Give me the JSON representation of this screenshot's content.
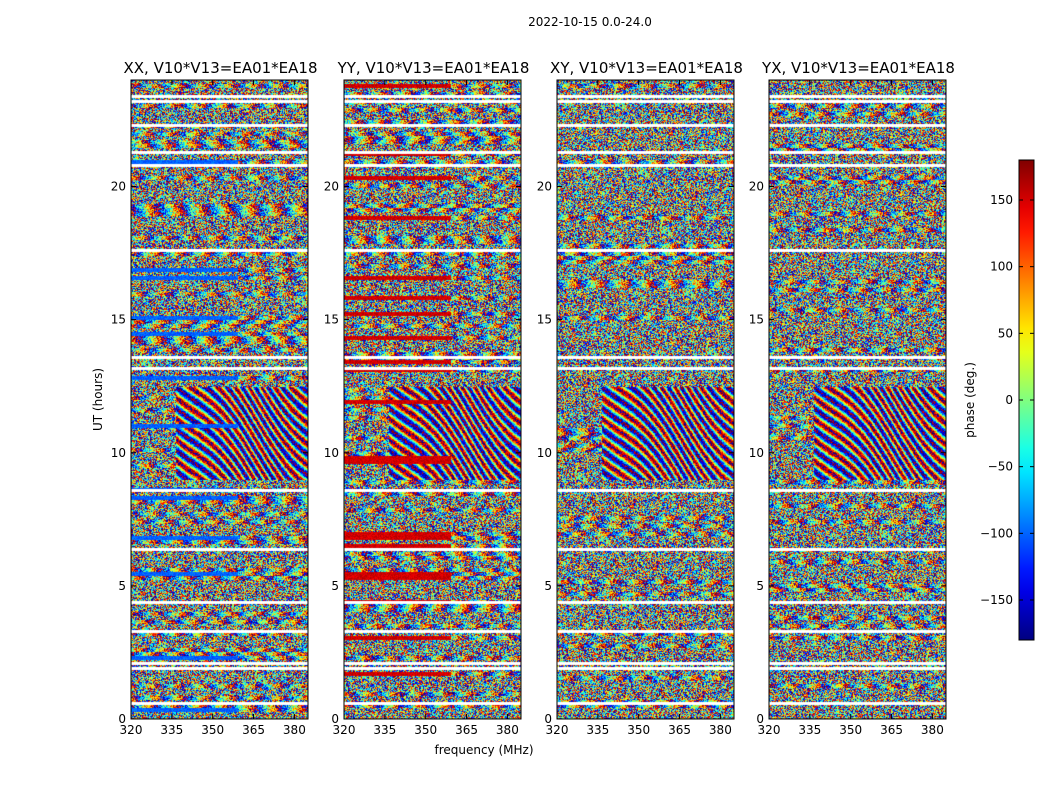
{
  "figure_title": "2022-10-15 0.0-24.0",
  "chart_data": [
    {
      "type": "heatmap",
      "title": "XX, V10*V13=EA01*EA18",
      "xlabel": "",
      "ylabel": "UT (hours)",
      "xlim": [
        320,
        385
      ],
      "ylim": [
        0,
        24
      ],
      "xticks": [
        320,
        335,
        350,
        365,
        380
      ],
      "yticks": [
        0,
        5,
        10,
        15,
        20
      ],
      "blank_hours": [
        0.6,
        1.9,
        2.1,
        3.3,
        4.4,
        6.4,
        8.6,
        13.2,
        13.6,
        17.6,
        20.8,
        21.3,
        22.3,
        23.2,
        23.4
      ]
    },
    {
      "type": "heatmap",
      "title": "YY, V10*V13=EA01*EA18",
      "xlabel": "frequency (MHz)",
      "ylabel": "",
      "xlim": [
        320,
        385
      ],
      "ylim": [
        0,
        24
      ],
      "xticks": [
        320,
        335,
        350,
        365,
        380
      ],
      "yticks": [
        0,
        5,
        10,
        15,
        20
      ],
      "blank_hours": [
        0.6,
        1.9,
        2.1,
        3.3,
        4.4,
        6.4,
        8.6,
        13.2,
        13.6,
        17.6,
        20.8,
        21.3,
        22.3,
        23.2,
        23.4
      ]
    },
    {
      "type": "heatmap",
      "title": "XY, V10*V13=EA01*EA18",
      "xlabel": "",
      "ylabel": "",
      "xlim": [
        320,
        385
      ],
      "ylim": [
        0,
        24
      ],
      "xticks": [
        320,
        335,
        350,
        365,
        380
      ],
      "yticks": [
        0,
        5,
        10,
        15,
        20
      ],
      "blank_hours": [
        0.6,
        1.9,
        2.1,
        3.3,
        4.4,
        6.4,
        8.6,
        13.2,
        13.6,
        17.6,
        20.8,
        21.3,
        22.3,
        23.2,
        23.4
      ]
    },
    {
      "type": "heatmap",
      "title": "YX, V10*V13=EA01*EA18",
      "xlabel": "",
      "ylabel": "",
      "xlim": [
        320,
        385
      ],
      "ylim": [
        0,
        24
      ],
      "xticks": [
        320,
        335,
        350,
        365,
        380
      ],
      "yticks": [
        0,
        5,
        10,
        15,
        20
      ],
      "blank_hours": [
        0.6,
        1.9,
        2.1,
        3.3,
        4.4,
        6.4,
        8.6,
        13.2,
        13.6,
        17.6,
        20.8,
        21.3,
        22.3,
        23.2,
        23.4
      ]
    }
  ],
  "colorbar": {
    "label": "phase (deg.)",
    "range": [
      -180,
      180
    ],
    "ticks": [
      150,
      100,
      50,
      0,
      -50,
      -100,
      -150
    ],
    "tick_labels": [
      "150",
      "100",
      "50",
      "0",
      "−50",
      "−100",
      "−150"
    ],
    "colormap": "jet"
  }
}
